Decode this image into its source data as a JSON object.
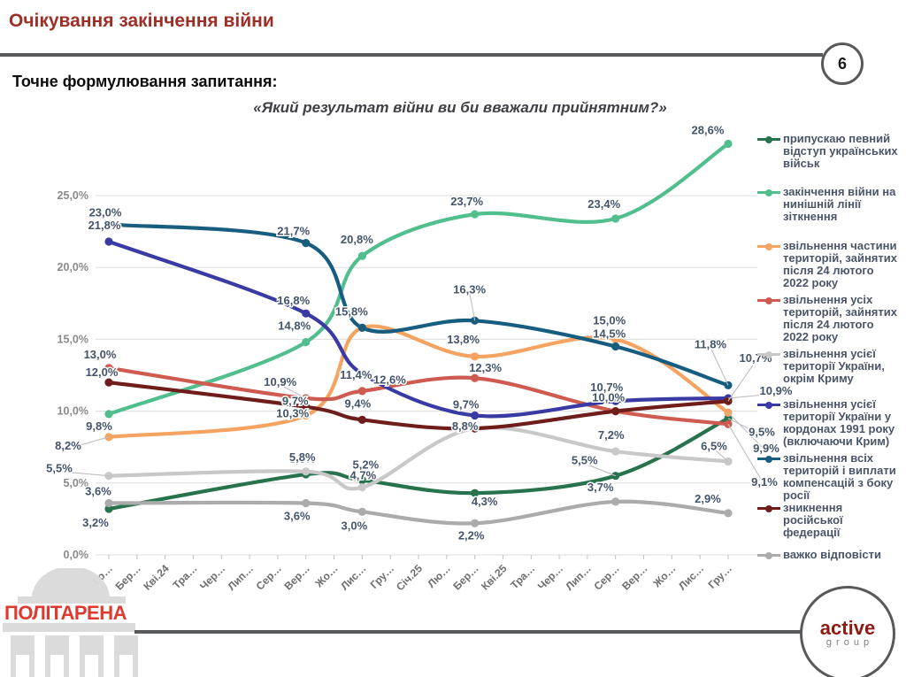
{
  "header": {
    "title": "Очікування закінчення війни",
    "page_number": "6",
    "question_label": "Точне формулювання запитання:",
    "question_text": "«Який результат війни ви би вважали прийнятним?»"
  },
  "chart_data": {
    "type": "line",
    "title": "",
    "grid": true,
    "legend_position": "right",
    "ylim": [
      0,
      26.5
    ],
    "y_tick_labels": [
      "0,0%",
      "5,0%",
      "10,0%",
      "15,0%",
      "20,0%",
      "25,0%"
    ],
    "x_tick_labels": [
      "Лю…",
      "Бер…",
      "Кві.24",
      "Тра…",
      "Чер…",
      "Лип…",
      "Сер…",
      "Вер…",
      "Жо…",
      "Лис…",
      "Гру…",
      "Січ.25",
      "Лю…",
      "Бер…",
      "Кві.25",
      "Тра…",
      "Чер…",
      "Лип…",
      "Сер…",
      "Вер…",
      "Жо…",
      "Лис…",
      "Гру…"
    ],
    "wave_tick_indices": [
      0,
      7,
      9,
      13,
      18,
      22
    ],
    "series": [
      {
        "name": "припускаю певний відступ українських військ",
        "color": "#27734E",
        "values": [
          3.2,
          5.6,
          5.2,
          4.3,
          5.5,
          9.5
        ],
        "labels": [
          "3,2%",
          "5,6%",
          "5,2%",
          "4,3%",
          "5,5%",
          "9,5%"
        ]
      },
      {
        "name": "закінчення війни на нинішній лінії зіткнення",
        "color": "#50BE8D",
        "values": [
          9.8,
          14.8,
          20.8,
          23.7,
          23.4,
          28.6
        ],
        "labels": [
          "9,8%",
          "14,8%",
          "20,8%",
          "23,7%",
          "23,4%",
          "28,6%"
        ]
      },
      {
        "name": "звільнення частини територій, зайнятих після 24 лютого 2022 року",
        "color": "#F5A361",
        "values": [
          8.2,
          9.7,
          15.8,
          13.8,
          15.0,
          9.9
        ],
        "labels": [
          "8,2%",
          "9,7%",
          "15,8%",
          "13,8%",
          "15,0%",
          "9,9%"
        ]
      },
      {
        "name": "звільнення усіх територій, зайнятих після 24 лютого 2022 року",
        "color": "#CF5B50",
        "values": [
          13.0,
          10.9,
          11.4,
          12.3,
          10.0,
          9.1
        ],
        "labels": [
          "13,0%",
          "10,9%",
          "11,4%",
          "12,3%",
          "10,0%",
          "9,1%"
        ]
      },
      {
        "name": "звільнення усієї території України, окрім Криму",
        "color": "#C8C8C8",
        "values": [
          5.5,
          5.8,
          4.7,
          8.8,
          7.2,
          6.5
        ],
        "labels": [
          "5,5%",
          "5,8%",
          "4,7%",
          "8,8%",
          "7,2%",
          "6,5%"
        ]
      },
      {
        "name": "звільнення усієї території України у кордонах 1991 року (включаючи Крим)",
        "color": "#3A3AA5",
        "values": [
          21.8,
          16.8,
          12.6,
          9.7,
          10.7,
          10.9
        ],
        "labels": [
          "21,8%",
          "16,8%",
          "12,6%",
          "9,7%",
          "10,7%",
          "10,9%"
        ]
      },
      {
        "name": "звільнення всіх територій і виплати компенсацій з боку росії",
        "color": "#175D80",
        "values": [
          23.0,
          21.7,
          15.8,
          16.3,
          14.5,
          11.8
        ],
        "labels": [
          "23,0%",
          "21,7%",
          "15,8%",
          "16,3%",
          "14,5%",
          "11,8%"
        ]
      },
      {
        "name": "зникнення російської федерації",
        "color": "#6F1D1B",
        "values": [
          12.0,
          10.3,
          9.4,
          8.8,
          10.0,
          10.7
        ],
        "labels": [
          "12,0%",
          "10,3%",
          "9,4%",
          "8,8%",
          "10,0%",
          "10,7%"
        ]
      },
      {
        "name": "важко відповісти",
        "color": "#ABABAB",
        "values": [
          3.6,
          3.6,
          3.0,
          2.2,
          3.7,
          2.9
        ],
        "labels": [
          "3,6%",
          "3,6%",
          "3,0%",
          "2,2%",
          "3,7%",
          "2,9%"
        ]
      }
    ]
  },
  "footer": {
    "left_logo": "ПОЛІТАРЕНА",
    "right_logo_top": "active",
    "right_logo_bottom": "group"
  }
}
